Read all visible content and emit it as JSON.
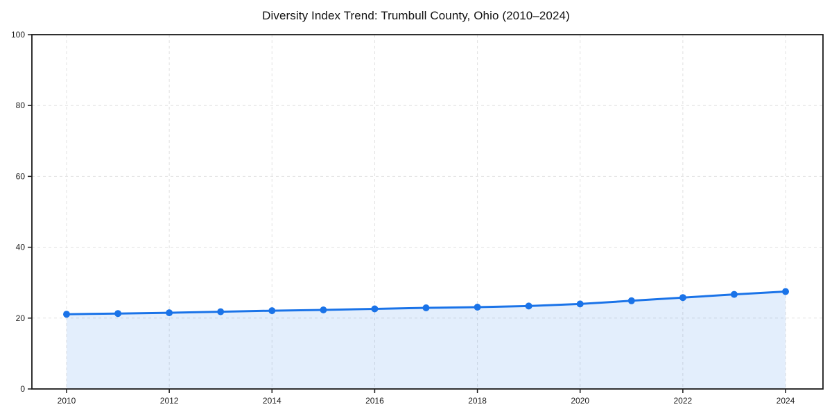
{
  "chart_data": {
    "type": "area",
    "title": "Diversity Index Trend: Trumbull County, Ohio (2010–2024)",
    "x": [
      2010,
      2011,
      2012,
      2013,
      2014,
      2015,
      2016,
      2017,
      2018,
      2019,
      2020,
      2021,
      2022,
      2023,
      2024
    ],
    "series": [
      {
        "name": "Diversity Index",
        "values": [
          21.1,
          21.3,
          21.5,
          21.8,
          22.1,
          22.3,
          22.6,
          22.9,
          23.1,
          23.4,
          24.0,
          24.9,
          25.8,
          26.7,
          27.5
        ]
      }
    ],
    "ylim": [
      0,
      100
    ],
    "yticks": [
      0,
      20,
      40,
      60,
      80,
      100
    ],
    "xticks": [
      2010,
      2012,
      2014,
      2016,
      2018,
      2020,
      2022,
      2024
    ],
    "grid": "dashed",
    "legend": "none",
    "line_color": "#1a73e8",
    "marker_color": "#1a73e8",
    "fill_color": "rgba(26,115,232,0.12)",
    "spine_color": "#1a1a1a"
  }
}
